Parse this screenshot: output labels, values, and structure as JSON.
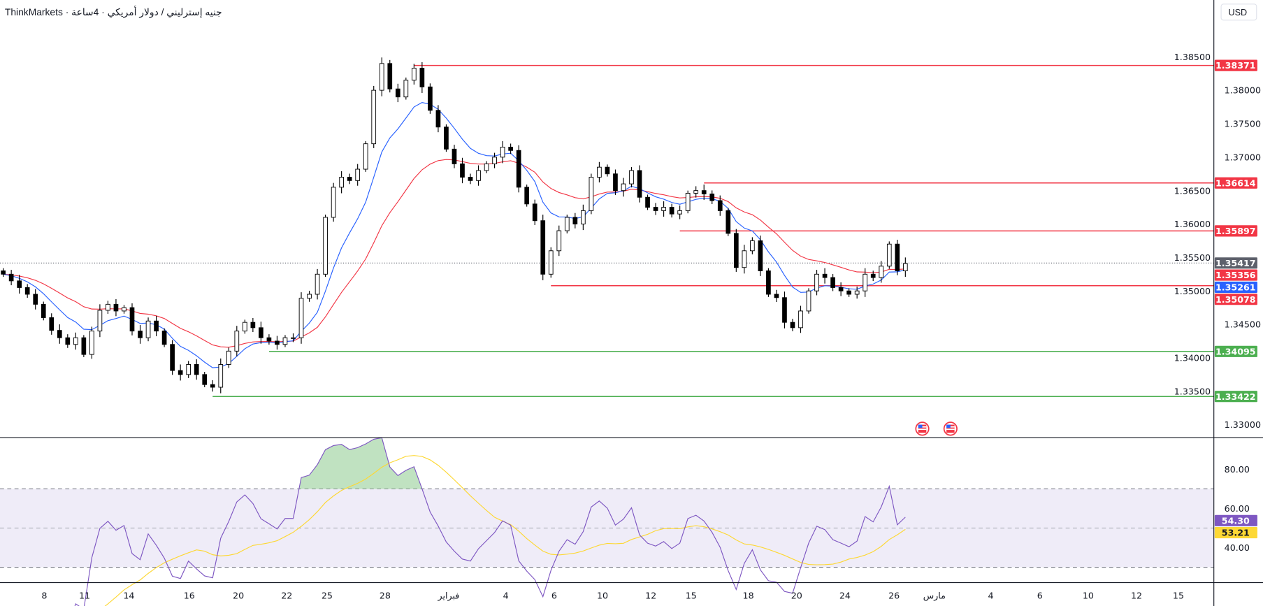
{
  "header": {
    "title": "ThinkMarkets · جنيه إسترليني / دولار أمريكي · 4ساعة"
  },
  "currency_button": "USD",
  "chart_data": {
    "type": "candlestick",
    "title": "جنيه إسترليني / دولار أمريكي · 4ساعة",
    "source": "ThinkMarkets",
    "ylim": [
      1.3285,
      1.3905
    ],
    "price_ticks": [
      "1.33000",
      "1.33500",
      "1.34000",
      "1.34500",
      "1.35000",
      "1.35500",
      "1.36000",
      "1.36500",
      "1.37000",
      "1.37500",
      "1.38000",
      "1.38500"
    ],
    "x_ticks": [
      "8",
      "11",
      "14",
      "16",
      "20",
      "22",
      "25",
      "28",
      "فبراير",
      "4",
      "6",
      "10",
      "12",
      "15",
      "18",
      "20",
      "24",
      "26",
      "مارس",
      "4",
      "6",
      "10",
      "12",
      "15"
    ],
    "closes": [
      1.3525,
      1.3515,
      1.3505,
      1.3495,
      1.348,
      1.346,
      1.3441,
      1.343,
      1.342,
      1.343,
      1.3405,
      1.344,
      1.3471,
      1.348,
      1.347,
      1.3475,
      1.344,
      1.343,
      1.3455,
      1.344,
      1.342,
      1.3381,
      1.3375,
      1.339,
      1.3375,
      1.336,
      1.3356,
      1.339,
      1.341,
      1.344,
      1.3453,
      1.3445,
      1.343,
      1.3425,
      1.342,
      1.343,
      1.343,
      1.3489,
      1.3495,
      1.3525,
      1.361,
      1.3655,
      1.367,
      1.3665,
      1.3682,
      1.372,
      1.38,
      1.384,
      1.3802,
      1.379,
      1.3815,
      1.3833,
      1.3805,
      1.377,
      1.3745,
      1.3712,
      1.369,
      1.367,
      1.3665,
      1.368,
      1.369,
      1.37,
      1.3715,
      1.371,
      1.3655,
      1.363,
      1.3605,
      1.3525,
      1.356,
      1.359,
      1.361,
      1.36,
      1.362,
      1.367,
      1.3685,
      1.3675,
      1.365,
      1.366,
      1.368,
      1.364,
      1.3625,
      1.362,
      1.3625,
      1.3615,
      1.362,
      1.3646,
      1.365,
      1.3645,
      1.3635,
      1.362,
      1.3586,
      1.3535,
      1.356,
      1.3575,
      1.353,
      1.3495,
      1.349,
      1.3453,
      1.3445,
      1.347,
      1.35,
      1.3525,
      1.352,
      1.3505,
      1.35,
      1.3495,
      1.35,
      1.3525,
      1.352,
      1.3537,
      1.357,
      1.353,
      1.3541
    ],
    "horizontal_levels": [
      {
        "price": "1.38371",
        "value": 1.38371,
        "color": "#f23645",
        "start_index": 51
      },
      {
        "price": "1.36614",
        "value": 1.36614,
        "color": "#f23645",
        "start_index": 87
      },
      {
        "price": "1.35897",
        "value": 1.35897,
        "color": "#f23645",
        "start_index": 84
      },
      {
        "price": "1.35078",
        "value": 1.35078,
        "color": "#f23645",
        "start_index": 68
      },
      {
        "price": "1.34095",
        "value": 1.34095,
        "color": "#4caf50",
        "start_index": 33
      },
      {
        "price": "1.33422",
        "value": 1.33422,
        "color": "#4caf50",
        "start_index": 26
      }
    ],
    "last_price": {
      "label": "1.35417",
      "value": 1.35417,
      "color": "#5d606b"
    },
    "ema_slow": {
      "label": "1.35356",
      "color": "#f23645",
      "period": 50
    },
    "ema_fast": {
      "label": "1.35261",
      "color": "#2962ff",
      "period": 20
    },
    "rsi": {
      "ticks": [
        "80.00",
        "60.00",
        "40.00"
      ],
      "upper_band": 70,
      "lower_band": 30,
      "middle": 50,
      "rsi_label": "54.30",
      "rsi_color": "#7e57c2",
      "ma_label": "53.21",
      "ma_color": "#fdd835",
      "period": 14,
      "ma_period": 14
    },
    "colors": {
      "up": "#ffffff",
      "down": "#000000",
      "band_fill": "#efecf8"
    }
  },
  "events": [
    {
      "icon": "us-flag-icon"
    },
    {
      "icon": "us-flag-icon"
    }
  ]
}
